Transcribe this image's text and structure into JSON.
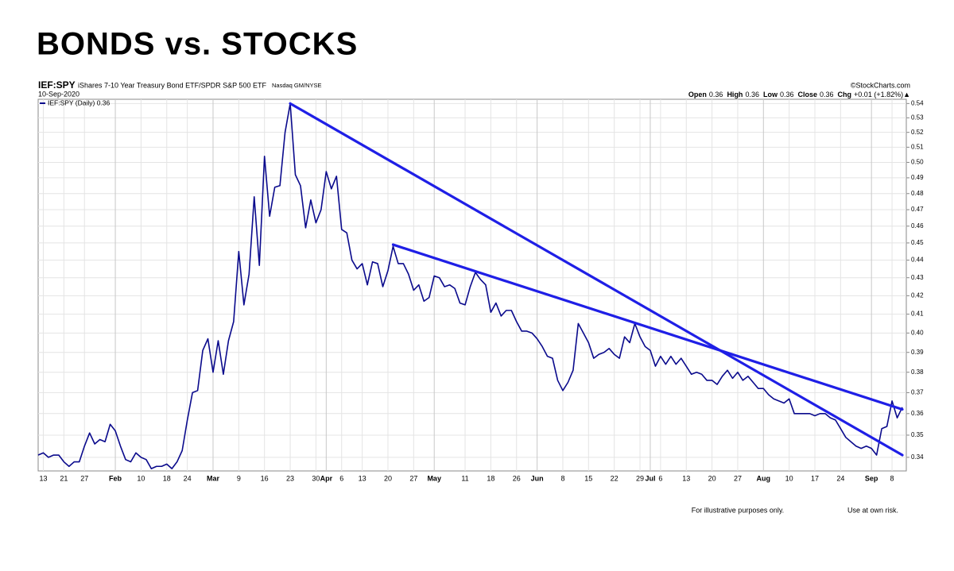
{
  "chart_data": {
    "type": "line",
    "title": "BONDS vs. STOCKS",
    "symbol": "IEF:SPY",
    "description": "iShares 7-10 Year Treasury Bond ETF/SPDR S&P 500 ETF",
    "exchange": "Nasdaq GM/NYSE",
    "date": "10-Sep-2020",
    "source": "©StockCharts.com",
    "quote": [
      {
        "label": "Open",
        "value": "0.36"
      },
      {
        "label": "High",
        "value": "0.36"
      },
      {
        "label": "Low",
        "value": "0.36"
      },
      {
        "label": "Close",
        "value": "0.36"
      },
      {
        "label": "Chg",
        "value": "+0.01 (+1.82%)▲"
      }
    ],
    "footer_left": "For illustrative purposes only.",
    "footer_right": "Use at own risk.",
    "categories": [
      null,
      "13",
      null,
      null,
      null,
      "21",
      null,
      null,
      null,
      "27",
      null,
      null,
      null,
      null,
      null,
      "Feb",
      null,
      null,
      null,
      null,
      "10",
      null,
      null,
      null,
      null,
      "18",
      null,
      null,
      null,
      "24",
      null,
      null,
      null,
      null,
      "Mar",
      null,
      null,
      null,
      null,
      "9",
      null,
      null,
      null,
      null,
      "16",
      null,
      null,
      null,
      null,
      "23",
      null,
      null,
      null,
      null,
      "30",
      null,
      "Apr",
      null,
      null,
      "6",
      null,
      null,
      null,
      "13",
      null,
      null,
      null,
      null,
      "20",
      null,
      null,
      null,
      null,
      "27",
      null,
      null,
      null,
      "May",
      null,
      null,
      null,
      null,
      null,
      "11",
      null,
      null,
      null,
      null,
      "18",
      null,
      null,
      null,
      null,
      "26",
      null,
      null,
      null,
      "Jun",
      null,
      null,
      null,
      null,
      "8",
      null,
      null,
      null,
      null,
      "15",
      null,
      null,
      null,
      null,
      "22",
      null,
      null,
      null,
      null,
      "29",
      null,
      "Jul",
      null,
      "6",
      null,
      null,
      null,
      null,
      "13",
      null,
      null,
      null,
      null,
      "20",
      null,
      null,
      null,
      null,
      "27",
      null,
      null,
      null,
      null,
      "Aug",
      null,
      null,
      null,
      null,
      "10",
      null,
      null,
      null,
      null,
      "17",
      null,
      null,
      null,
      null,
      "24",
      null,
      null,
      null,
      null,
      null,
      "Sep",
      null,
      null,
      null,
      "8",
      null,
      null
    ],
    "series": [
      {
        "name": "IEF:SPY (Daily) 0.36",
        "color": "#0a0a8c",
        "values": [
          0.341,
          0.342,
          0.34,
          0.341,
          0.341,
          0.338,
          0.336,
          0.338,
          0.338,
          0.345,
          0.351,
          0.346,
          0.348,
          0.347,
          0.355,
          0.352,
          0.345,
          0.339,
          0.338,
          0.342,
          0.34,
          0.339,
          0.335,
          0.336,
          0.336,
          0.337,
          0.335,
          0.338,
          0.343,
          0.357,
          0.37,
          0.371,
          0.391,
          0.397,
          0.38,
          0.396,
          0.379,
          0.396,
          0.406,
          0.445,
          0.415,
          0.432,
          0.478,
          0.437,
          0.504,
          0.466,
          0.484,
          0.485,
          0.52,
          0.54,
          0.492,
          0.485,
          0.459,
          0.476,
          0.462,
          0.47,
          0.494,
          0.483,
          0.491,
          0.458,
          0.456,
          0.44,
          0.435,
          0.438,
          0.426,
          0.439,
          0.438,
          0.425,
          0.434,
          0.448,
          0.438,
          0.438,
          0.432,
          0.423,
          0.426,
          0.417,
          0.419,
          0.431,
          0.43,
          0.425,
          0.426,
          0.424,
          0.416,
          0.415,
          0.425,
          0.433,
          0.429,
          0.426,
          0.411,
          0.416,
          0.409,
          0.412,
          0.412,
          0.406,
          0.401,
          0.401,
          0.4,
          0.397,
          0.393,
          0.388,
          0.387,
          0.376,
          0.371,
          0.375,
          0.381,
          0.405,
          0.4,
          0.395,
          0.387,
          0.389,
          0.39,
          0.392,
          0.389,
          0.387,
          0.398,
          0.395,
          0.405,
          0.398,
          0.393,
          0.391,
          0.383,
          0.388,
          0.384,
          0.388,
          0.384,
          0.387,
          0.383,
          0.379,
          0.38,
          0.379,
          0.376,
          0.376,
          0.374,
          0.378,
          0.381,
          0.377,
          0.38,
          0.376,
          0.378,
          0.375,
          0.372,
          0.372,
          0.369,
          0.367,
          0.366,
          0.365,
          0.367,
          0.36,
          0.36,
          0.36,
          0.36,
          0.359,
          0.36,
          0.36,
          0.358,
          0.357,
          0.353,
          0.349,
          0.347,
          0.345,
          0.344,
          0.345,
          0.344,
          0.341,
          0.353,
          0.354,
          0.366,
          0.358,
          0.363
        ]
      }
    ],
    "trendlines": [
      {
        "color": "#1f1fe6",
        "points": [
          [
            49,
            0.54
          ],
          [
            168,
            0.341
          ]
        ]
      },
      {
        "color": "#1f1fe6",
        "points": [
          [
            69,
            0.449
          ],
          [
            168,
            0.362
          ]
        ]
      }
    ],
    "log_y": true,
    "ylim": [
      0.334,
      0.543
    ],
    "yticks": [
      0.34,
      0.35,
      0.36,
      0.37,
      0.38,
      0.39,
      0.4,
      0.41,
      0.42,
      0.43,
      0.44,
      0.45,
      0.46,
      0.47,
      0.48,
      0.49,
      0.5,
      0.51,
      0.52,
      0.53,
      0.54
    ],
    "ytick_labels": [
      "0.34",
      "0.35",
      "0.36",
      "0.37",
      "0.38",
      "0.39",
      "0.40",
      "0.41",
      "0.42",
      "0.43",
      "0.44",
      "0.45",
      "0.46",
      "0.47",
      "0.48",
      "0.49",
      "0.50",
      "0.51",
      "0.52",
      "0.53",
      "0.54"
    ],
    "grid": true
  }
}
